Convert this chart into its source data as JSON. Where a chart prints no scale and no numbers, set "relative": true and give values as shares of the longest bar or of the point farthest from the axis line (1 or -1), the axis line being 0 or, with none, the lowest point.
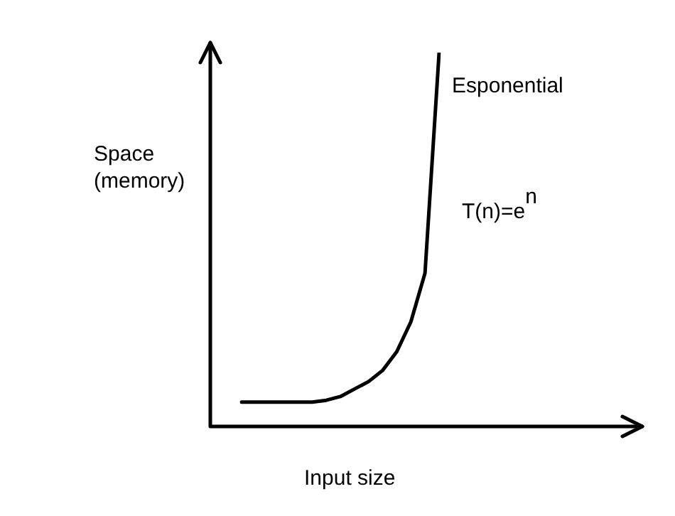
{
  "chart_data": {
    "type": "line",
    "relative": true,
    "xlabel": "Input size",
    "ylabel": "Space\n(memory)",
    "annotations": [
      "Esponential",
      "T(n)=e$^{n}$"
    ],
    "categories": [
      null,
      null,
      null,
      null,
      null,
      null,
      null,
      null,
      null,
      null,
      null,
      null,
      null,
      null,
      null
    ],
    "series": [
      {
        "color": "#000000",
        "values": [
          0.065,
          0.065,
          0.065,
          0.065,
          0.065,
          0.065,
          0.07,
          0.08,
          0.1,
          0.12,
          0.15,
          0.2,
          0.28,
          0.41,
          1
        ]
      }
    ],
    "grid": false,
    "legend": false,
    "marker": "none",
    "line_style": "solid",
    "tick_labels": false
  }
}
